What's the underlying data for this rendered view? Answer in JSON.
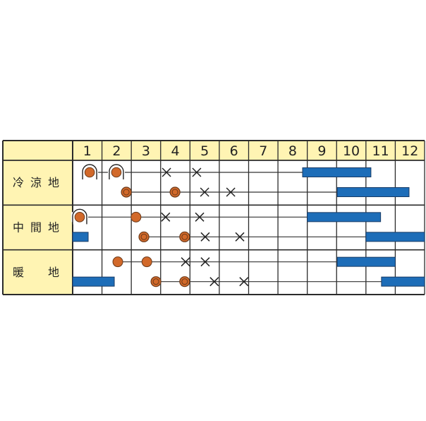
{
  "chart_data": {
    "type": "table",
    "months": [
      "1",
      "2",
      "3",
      "4",
      "5",
      "6",
      "7",
      "8",
      "9",
      "10",
      "11",
      "12"
    ],
    "x_range": [
      1,
      13
    ],
    "colors": {
      "header_bg": "#FFF4B3",
      "circle": "#D2692A",
      "circle_stroke": "#6B3A1A",
      "bar": "#1D6DB8",
      "grid": "#2b2b2b"
    },
    "regions": [
      {
        "label": "冷涼地",
        "rows": [
          {
            "line": [
              1.58,
              8.84
            ],
            "marks": [
              {
                "type": "arch-circle",
                "x": 1.58
              },
              {
                "type": "arch-circle",
                "x": 2.49
              },
              {
                "type": "cross",
                "x": 4.2
              },
              {
                "type": "cross",
                "x": 5.23
              }
            ],
            "bars": [
              [
                8.84,
                11.17
              ]
            ]
          },
          {
            "line": [
              2.83,
              10.02
            ],
            "marks": [
              {
                "type": "double-circle",
                "x": 2.83
              },
              {
                "type": "double-circle",
                "x": 4.49
              },
              {
                "type": "cross",
                "x": 5.5
              },
              {
                "type": "cross",
                "x": 6.39
              }
            ],
            "bars": [
              [
                10.02,
                12.47
              ]
            ]
          }
        ]
      },
      {
        "label": "中間地",
        "rows": [
          {
            "line": [
              1.24,
              9.0
            ],
            "marks": [
              {
                "type": "arch-circle",
                "x": 1.24
              },
              {
                "type": "circle",
                "x": 3.16
              },
              {
                "type": "cross",
                "x": 4.17
              },
              {
                "type": "cross",
                "x": 5.33
              }
            ],
            "bars": [
              [
                9.0,
                11.5
              ]
            ]
          },
          {
            "line": [
              3.43,
              11.0
            ],
            "marks": [
              {
                "type": "double-circle",
                "x": 3.43
              },
              {
                "type": "double-circle",
                "x": 4.82
              },
              {
                "type": "cross",
                "x": 5.52
              },
              {
                "type": "cross",
                "x": 6.7
              }
            ],
            "bars": [
              [
                1.0,
                1.53
              ],
              [
                11.0,
                13.0
              ]
            ]
          }
        ]
      },
      {
        "label": "暖　地",
        "rows": [
          {
            "line": [
              2.54,
              10.02
            ],
            "marks": [
              {
                "type": "circle",
                "x": 2.54
              },
              {
                "type": "circle",
                "x": 3.53
              },
              {
                "type": "cross",
                "x": 4.85
              },
              {
                "type": "cross",
                "x": 5.52
              }
            ],
            "bars": [
              [
                10.02,
                12.0
              ]
            ]
          },
          {
            "line": [
              3.84,
              11.53
            ],
            "marks": [
              {
                "type": "double-circle",
                "x": 3.84
              },
              {
                "type": "double-circle",
                "x": 4.82
              },
              {
                "type": "cross",
                "x": 5.83
              },
              {
                "type": "cross",
                "x": 6.84
              }
            ],
            "bars": [
              [
                1.0,
                2.42
              ],
              [
                11.53,
                13.0
              ]
            ]
          }
        ]
      }
    ]
  }
}
